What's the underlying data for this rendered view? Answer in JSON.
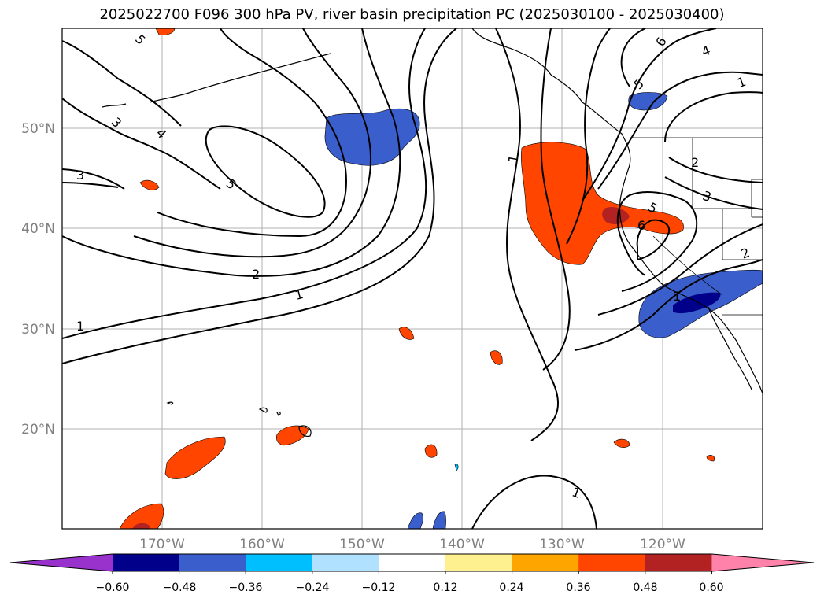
{
  "title": "2025022700 F096 300 hPa PV, river basin precipitation PC (2025030100 - 2025030400)",
  "map": {
    "lon_labels": [
      "170°W",
      "160°W",
      "150°W",
      "140°W",
      "130°W",
      "120°W"
    ],
    "lat_labels": [
      "50°N",
      "40°N",
      "30°N",
      "20°N"
    ],
    "contour_labels": [
      "5",
      "3",
      "4",
      "3",
      "5",
      "2",
      "1",
      "1",
      "1",
      "6",
      "5",
      "4",
      "1",
      "2",
      "3",
      "5",
      "6",
      "2",
      "1",
      "1"
    ],
    "gridlines": true
  },
  "colorbar": {
    "tick_labels": [
      "−0.60",
      "−0.48",
      "−0.36",
      "−0.24",
      "−0.12",
      "0.12",
      "0.24",
      "0.36",
      "0.48",
      "0.60"
    ],
    "colors": [
      "#9932cc",
      "#00008b",
      "#3a5fcd",
      "#00bfff",
      "#b0e2ff",
      "#ffffff",
      "#fff08f",
      "#ffa500",
      "#ff4500",
      "#b22222",
      "#ff82ab"
    ]
  }
}
